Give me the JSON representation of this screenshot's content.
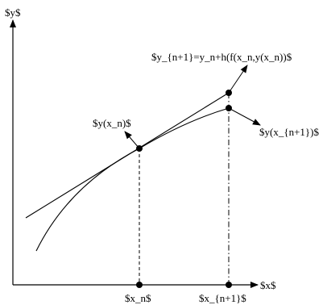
{
  "diagram": {
    "axes": {
      "y_label": "$y$",
      "x_label": "$x$"
    },
    "labels": {
      "euler_step": "$y_{n+1}=y_n+h(f(x_n,y(x_n))$",
      "point_current": "$y(x_n)$",
      "point_next_exact": "$y(x_{n+1})$",
      "x_n": "$x_n$",
      "x_n1": "$x_{n+1}$"
    }
  }
}
